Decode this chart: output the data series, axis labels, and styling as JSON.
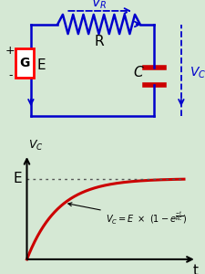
{
  "bg_color": "#d5e8d4",
  "circuit_color": "#0000cc",
  "cap_color": "#cc0000",
  "curve_color": "#cc0000",
  "dashed_color": "#555555",
  "G_label": "G",
  "E_label": "E",
  "R_label": "R",
  "C_label": "C",
  "t_label": "t",
  "plus_label": "+",
  "minus_label": "-"
}
